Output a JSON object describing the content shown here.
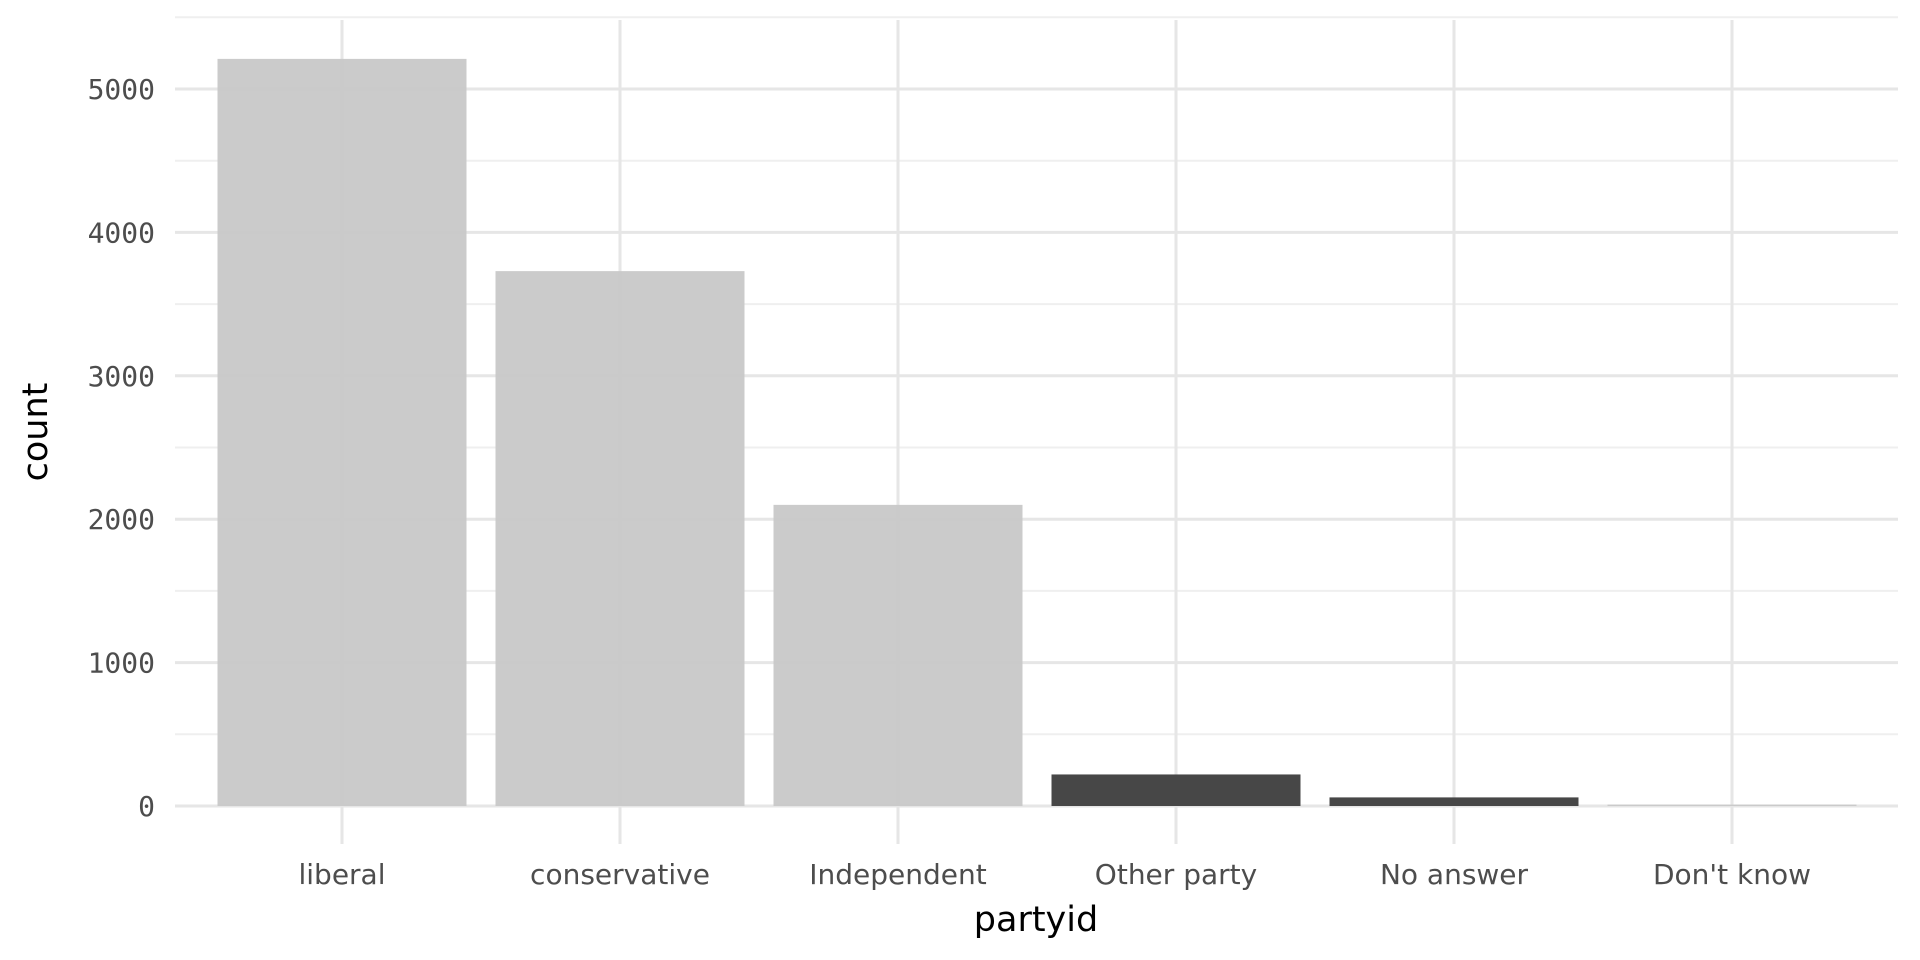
{
  "chart_data": {
    "type": "bar",
    "title": "",
    "xlabel": "partyid",
    "ylabel": "count",
    "categories": [
      "liberal",
      "conservative",
      "Independent",
      "Other party",
      "No answer",
      "Don't know"
    ],
    "values": [
      5210,
      3730,
      2100,
      220,
      60,
      10
    ],
    "ylim": [
      0,
      5500
    ],
    "yticks": [
      "0",
      "1000",
      "2000",
      "3000",
      "4000",
      "5000"
    ],
    "ytick_values": [
      0,
      1000,
      2000,
      3000,
      4000,
      5000
    ],
    "grid": true,
    "legend": "none",
    "colors": {
      "highlight_bars": "#c8c8c8",
      "dark_bars": "#474747",
      "grid_major": "#e6e6e6",
      "grid_minor": "#efefef"
    },
    "dark_categories": [
      "Other party",
      "No answer"
    ]
  }
}
